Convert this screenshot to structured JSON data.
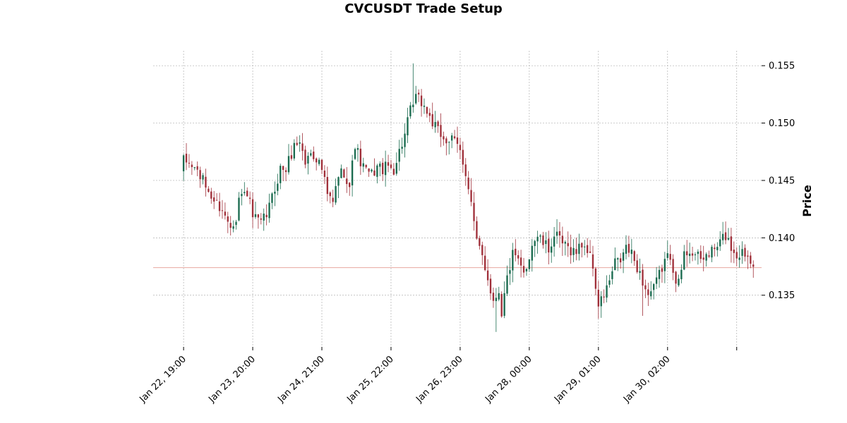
{
  "chart_data": {
    "type": "candlestick",
    "title": "CVCUSDT Trade Setup",
    "ylabel": "Price",
    "xlabel": "",
    "ylim": [
      0.1305,
      0.1563
    ],
    "y_ticks": [
      0.135,
      0.14,
      0.145,
      0.15,
      0.155
    ],
    "y_tick_labels": [
      "0.135",
      "0.140",
      "0.145",
      "0.150",
      "0.155"
    ],
    "x_tick_labels": [
      "Jan 22, 19:00",
      "Jan 23, 20:00",
      "Jan 24, 21:00",
      "Jan 25, 22:00",
      "Jan 26, 23:00",
      "Jan 28, 00:00",
      "Jan 29, 01:00",
      "Jan 30, 02:00",
      ""
    ],
    "x_tick_positions": [
      0,
      25,
      50,
      75,
      100,
      125,
      150,
      175,
      200
    ],
    "x_range": [
      -11,
      209
    ],
    "reference_line": 0.1374,
    "grid": true,
    "colors": {
      "up": "#1a6b4f",
      "down": "#a0303a",
      "reference": "#e8a8a0",
      "grid": "#b0b0b0"
    },
    "anchors": [
      [
        0,
        0.1467
      ],
      [
        3,
        0.1463
      ],
      [
        5,
        0.1458
      ],
      [
        8,
        0.1445
      ],
      [
        11,
        0.1432
      ],
      [
        14,
        0.1425
      ],
      [
        15,
        0.1418
      ],
      [
        17,
        0.1412
      ],
      [
        19,
        0.1418
      ],
      [
        20,
        0.1435
      ],
      [
        23,
        0.144
      ],
      [
        25,
        0.1418
      ],
      [
        28,
        0.1412
      ],
      [
        30,
        0.142
      ],
      [
        32,
        0.1435
      ],
      [
        35,
        0.146
      ],
      [
        37,
        0.146
      ],
      [
        40,
        0.148
      ],
      [
        42,
        0.1485
      ],
      [
        44,
        0.1465
      ],
      [
        46,
        0.1475
      ],
      [
        48,
        0.147
      ],
      [
        50,
        0.146
      ],
      [
        52,
        0.1437
      ],
      [
        54,
        0.143
      ],
      [
        56,
        0.1455
      ],
      [
        58,
        0.1458
      ],
      [
        60,
        0.1445
      ],
      [
        62,
        0.1482
      ],
      [
        64,
        0.1465
      ],
      [
        66,
        0.1458
      ],
      [
        68,
        0.1455
      ],
      [
        70,
        0.1462
      ],
      [
        72,
        0.146
      ],
      [
        74,
        0.1462
      ],
      [
        76,
        0.146
      ],
      [
        78,
        0.1475
      ],
      [
        80,
        0.149
      ],
      [
        82,
        0.151
      ],
      [
        84,
        0.1522
      ],
      [
        86,
        0.1518
      ],
      [
        88,
        0.151
      ],
      [
        90,
        0.15
      ],
      [
        92,
        0.1492
      ],
      [
        95,
        0.1485
      ],
      [
        97,
        0.1485
      ],
      [
        99,
        0.148
      ],
      [
        100,
        0.1475
      ],
      [
        102,
        0.1458
      ],
      [
        104,
        0.143
      ],
      [
        106,
        0.1395
      ],
      [
        108,
        0.1385
      ],
      [
        110,
        0.1365
      ],
      [
        112,
        0.1345
      ],
      [
        114,
        0.1355
      ],
      [
        115,
        0.1335
      ],
      [
        117,
        0.1365
      ],
      [
        119,
        0.1385
      ],
      [
        121,
        0.1378
      ],
      [
        123,
        0.1368
      ],
      [
        124,
        0.1375
      ],
      [
        126,
        0.1395
      ],
      [
        128,
        0.1402
      ],
      [
        130,
        0.1395
      ],
      [
        132,
        0.139
      ],
      [
        134,
        0.1402
      ],
      [
        136,
        0.1398
      ],
      [
        138,
        0.1392
      ],
      [
        140,
        0.139
      ],
      [
        142,
        0.1388
      ],
      [
        144,
        0.1395
      ],
      [
        146,
        0.139
      ],
      [
        148,
        0.1375
      ],
      [
        149,
        0.1358
      ],
      [
        150,
        0.134
      ],
      [
        152,
        0.135
      ],
      [
        154,
        0.1362
      ],
      [
        156,
        0.1378
      ],
      [
        158,
        0.138
      ],
      [
        160,
        0.1392
      ],
      [
        162,
        0.1385
      ],
      [
        164,
        0.1375
      ],
      [
        166,
        0.1362
      ],
      [
        168,
        0.135
      ],
      [
        170,
        0.1355
      ],
      [
        172,
        0.1368
      ],
      [
        174,
        0.138
      ],
      [
        176,
        0.1385
      ],
      [
        178,
        0.1365
      ],
      [
        179,
        0.136
      ],
      [
        181,
        0.1385
      ],
      [
        183,
        0.139
      ],
      [
        185,
        0.1385
      ],
      [
        187,
        0.138
      ],
      [
        189,
        0.1385
      ],
      [
        191,
        0.1388
      ],
      [
        193,
        0.1392
      ],
      [
        195,
        0.14
      ],
      [
        196,
        0.1402
      ],
      [
        198,
        0.1392
      ],
      [
        200,
        0.1385
      ],
      [
        202,
        0.1388
      ],
      [
        204,
        0.1385
      ],
      [
        206,
        0.138
      ]
    ]
  }
}
